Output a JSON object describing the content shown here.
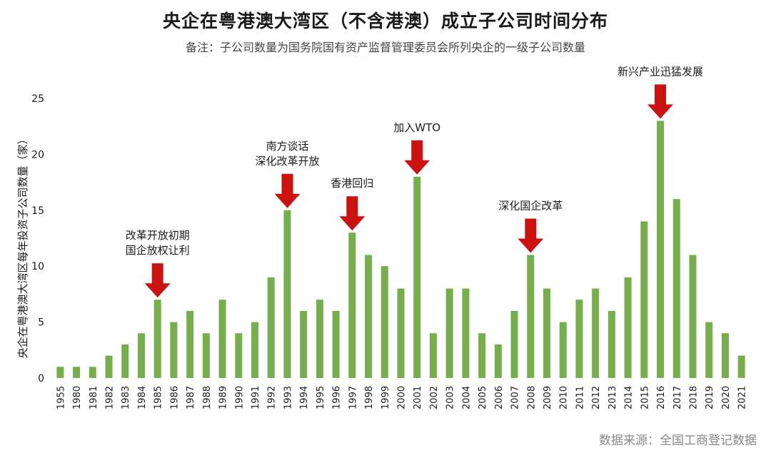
{
  "chart_data": {
    "type": "bar",
    "title": "央企在粤港澳大湾区（不含港澳）成立子公司时间分布",
    "subtitle": "备注：子公司数量为国务院国有资产监督管理委员会所列央企的一级子公司数量",
    "ylabel": "央企在粤港澳大湾区每年投资子公司数量（家）",
    "xlabel": "",
    "ylim": [
      0,
      25
    ],
    "yticks": [
      0,
      5,
      10,
      15,
      20,
      25
    ],
    "grid": false,
    "bar_color": "#76ad4d",
    "arrow_color": "#cc1111",
    "categories": [
      "1955",
      "1980",
      "1981",
      "1982",
      "1983",
      "1984",
      "1985",
      "1986",
      "1987",
      "1988",
      "1989",
      "1990",
      "1991",
      "1992",
      "1993",
      "1994",
      "1995",
      "1996",
      "1997",
      "1998",
      "1999",
      "2000",
      "2001",
      "2002",
      "2003",
      "2004",
      "2005",
      "2006",
      "2007",
      "2008",
      "2009",
      "2010",
      "2011",
      "2012",
      "2013",
      "2014",
      "2015",
      "2016",
      "2017",
      "2018",
      "2019",
      "2020",
      "2021"
    ],
    "values": [
      1,
      1,
      1,
      2,
      3,
      4,
      7,
      5,
      6,
      4,
      7,
      4,
      5,
      9,
      15,
      6,
      7,
      6,
      13,
      11,
      10,
      8,
      18,
      4,
      8,
      8,
      4,
      3,
      6,
      11,
      8,
      5,
      7,
      8,
      6,
      9,
      14,
      23,
      16,
      11,
      5,
      4,
      2
    ],
    "annotations": [
      {
        "category": "1985",
        "lines": [
          "改革开放初期",
          "国企放权让利"
        ]
      },
      {
        "category": "1993",
        "lines": [
          "南方谈话",
          "深化改革开放"
        ]
      },
      {
        "category": "1997",
        "lines": [
          "香港回归"
        ]
      },
      {
        "category": "2001",
        "lines": [
          "加入WTO"
        ]
      },
      {
        "category": "2008",
        "lines": [
          "深化国企改革"
        ]
      },
      {
        "category": "2016",
        "lines": [
          "新兴产业迅猛发展"
        ]
      }
    ]
  },
  "source": "数据来源：全国工商登记数据"
}
